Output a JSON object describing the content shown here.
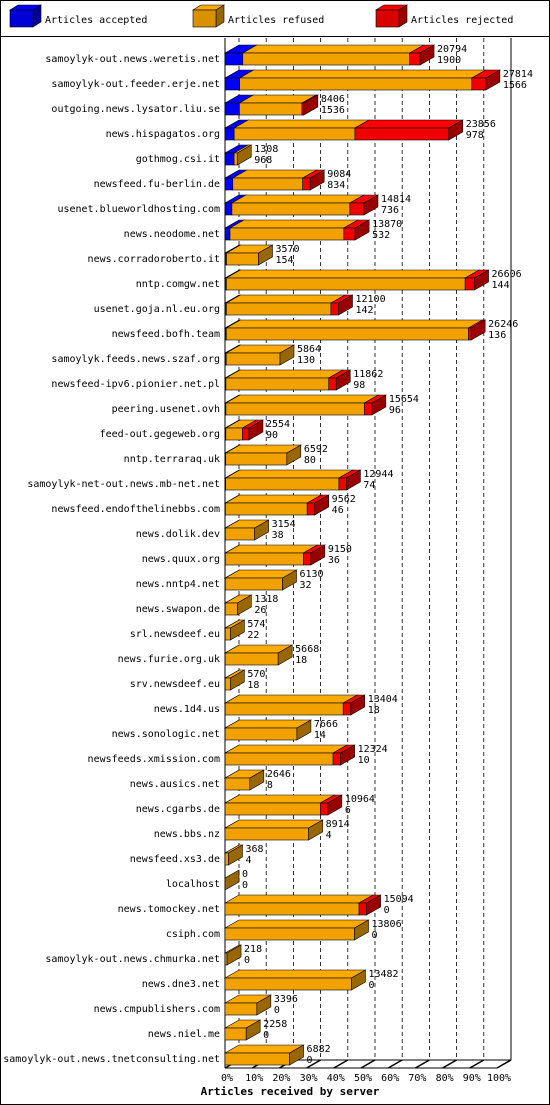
{
  "chart_data": {
    "type": "stacked-bar-3d",
    "xlabel": "Articles received by server",
    "categories": [
      "samoylyk-out.news.weretis.net",
      "samoylyk-out.feeder.erje.net",
      "outgoing.news.lysator.liu.se",
      "news.hispagatos.org",
      "gothmog.csi.it",
      "newsfeed.fu-berlin.de",
      "usenet.blueworldhosting.com",
      "news.neodome.net",
      "news.corradoroberto.it",
      "nntp.comgw.net",
      "usenet.goja.nl.eu.org",
      "newsfeed.bofh.team",
      "samoylyk.feeds.news.szaf.org",
      "newsfeed-ipv6.pionier.net.pl",
      "peering.usenet.ovh",
      "feed-out.gegeweb.org",
      "nntp.terraraq.uk",
      "samoylyk-net-out.news.mb-net.net",
      "newsfeed.endofthelinebbs.com",
      "news.dolik.dev",
      "news.quux.org",
      "news.nntp4.net",
      "news.swapon.de",
      "srl.newsdeef.eu",
      "news.furie.org.uk",
      "srv.newsdeef.eu",
      "news.1d4.us",
      "news.sonologic.net",
      "newsfeeds.xmission.com",
      "news.ausics.net",
      "news.cgarbs.de",
      "news.bbs.nz",
      "newsfeed.xs3.de",
      "localhost",
      "news.tomockey.net",
      "csiph.com",
      "samoylyk-out.news.chmurka.net",
      "news.dne3.net",
      "news.cmpublishers.com",
      "news.niel.me",
      "samoylyk-out.news.tnetconsulting.net"
    ],
    "totals": [
      20794,
      27814,
      8406,
      23856,
      1308,
      9084,
      14814,
      13870,
      3570,
      26606,
      12100,
      26246,
      5864,
      11862,
      15654,
      2554,
      6592,
      12944,
      9562,
      3154,
      9150,
      6130,
      1318,
      574,
      5668,
      570,
      13404,
      7666,
      12324,
      2646,
      10964,
      8914,
      368,
      0,
      15094,
      13806,
      218,
      13482,
      3396,
      2258,
      6882
    ],
    "series": [
      {
        "name": "Articles accepted",
        "color": "#0000ff",
        "values": [
          1900,
          1566,
          1536,
          978,
          968,
          834,
          736,
          532,
          154,
          144,
          142,
          136,
          130,
          98,
          96,
          90,
          80,
          74,
          46,
          38,
          36,
          32,
          26,
          22,
          18,
          18,
          18,
          14,
          10,
          8,
          6,
          4,
          4,
          0,
          0,
          0,
          0,
          0,
          0,
          0,
          0
        ]
      },
      {
        "name": "Articles refused",
        "color": "#ffaa00",
        "values": [
          17794,
          24748,
          6670,
          12878,
          340,
          7450,
          12578,
          12138,
          3416,
          25462,
          11158,
          25810,
          5734,
          10964,
          14758,
          1764,
          6512,
          12070,
          8716,
          3116,
          8314,
          6098,
          1292,
          552,
          5650,
          552,
          12586,
          7652,
          11514,
          2638,
          10158,
          8910,
          364,
          0,
          14294,
          13806,
          218,
          13482,
          3396,
          2258,
          6882
        ]
      },
      {
        "name": "Articles rejected",
        "color": "#ff0000",
        "values": [
          1100,
          1500,
          200,
          10000,
          0,
          800,
          1500,
          1200,
          0,
          1000,
          800,
          300,
          0,
          800,
          800,
          700,
          0,
          800,
          800,
          0,
          800,
          0,
          0,
          0,
          0,
          0,
          800,
          0,
          800,
          0,
          800,
          0,
          0,
          0,
          800,
          0,
          0,
          0,
          0,
          0,
          0
        ]
      }
    ],
    "xlim": [
      0,
      29000
    ],
    "xticks": [
      {
        "value": 0,
        "label": "0%"
      },
      {
        "value": 2900,
        "label": "10%"
      },
      {
        "value": 5800,
        "label": "20%"
      },
      {
        "value": 8700,
        "label": "30%"
      },
      {
        "value": 11600,
        "label": "40%"
      },
      {
        "value": 14500,
        "label": "50%"
      },
      {
        "value": 17400,
        "label": "60%"
      },
      {
        "value": 20300,
        "label": "70%"
      },
      {
        "value": 23200,
        "label": "80%"
      },
      {
        "value": 26100,
        "label": "90%"
      },
      {
        "value": 29000,
        "label": "100%"
      }
    ],
    "grid": true
  }
}
